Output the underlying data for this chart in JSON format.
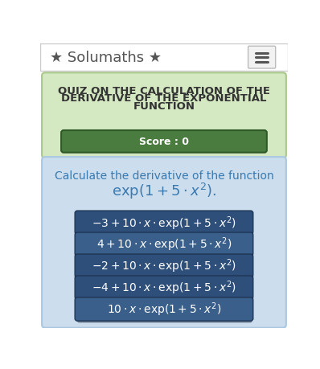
{
  "bg_color": "#ffffff",
  "navbar_bg": "#ffffff",
  "navbar_border": "#cccccc",
  "navbar_title": "★ Solumaths ★",
  "navbar_title_color": "#555555",
  "navbar_title_fontsize": 13,
  "hamburger_color": "#555555",
  "quiz_box_bg": "#d4e8c2",
  "quiz_box_border": "#aac88a",
  "quiz_title_line1": "QUIZ ON THE CALCULATION OF THE",
  "quiz_title_line2": "DERIVATIVE OF THE EXPONENTIAL",
  "quiz_title_line3": "FUNCTION",
  "quiz_title_color": "#333333",
  "quiz_title_fontsize": 9.5,
  "score_box_bg": "#4a7c3f",
  "score_box_border": "#2e5a28",
  "score_text": "Score : 0",
  "score_text_color": "#ffffff",
  "score_fontsize": 9,
  "question_box_bg": "#ccdded",
  "question_box_border": "#aac8e0",
  "question_line1": "Calculate the derivative of the function",
  "question_line1_color": "#3a7ab0",
  "question_line1_fontsize": 10,
  "question_line2": "$\\mathrm{exp}(1 + 5 \\cdot x^2).$",
  "question_line2_color": "#3a7ab0",
  "question_line2_fontsize": 13,
  "button_bg": "#3a5f8a",
  "button_bg_dark": "#2e4f7a",
  "button_border": "#1e3555",
  "button_text_color": "#ffffff",
  "button_fontsize": 10,
  "buttons": [
    "$-3 + 10 \\cdot x \\cdot \\mathrm{exp}(1 + 5 \\cdot x^2)$",
    "$4 + 10 \\cdot x \\cdot \\mathrm{exp}(1 + 5 \\cdot x^2)$",
    "$-2 + 10 \\cdot x \\cdot \\mathrm{exp}(1 + 5 \\cdot x^2)$",
    "$-4 + 10 \\cdot x \\cdot \\mathrm{exp}(1 + 5 \\cdot x^2)$",
    "$10 \\cdot x \\cdot \\mathrm{exp}(1 + 5 \\cdot x^2)$"
  ],
  "button_colors": [
    "#2e4f7a",
    "#3a5f8a",
    "#2e4f7a",
    "#2e4f7a",
    "#3a5f8a"
  ]
}
